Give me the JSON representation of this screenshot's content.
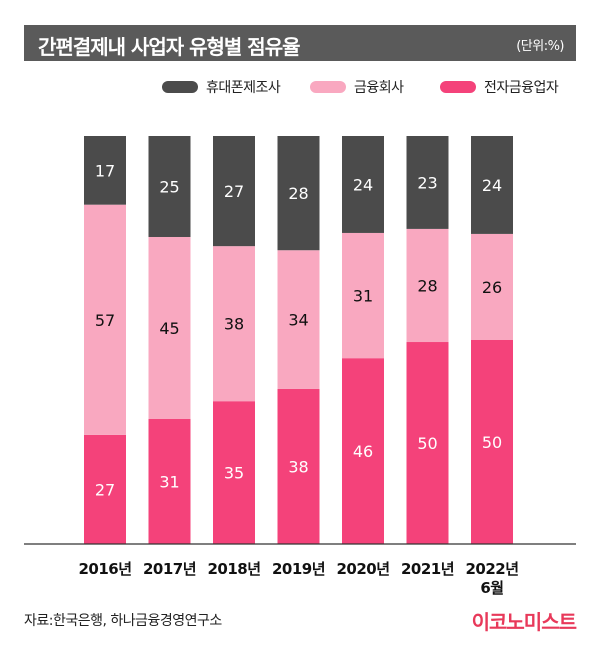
{
  "header": {
    "title": "간편결제내 사업자 유형별 점유율",
    "unit": "(단위:%)"
  },
  "colors": {
    "title_bg": "#5a5a5a",
    "device": "#4b4b4b",
    "finance": "#f9a8c0",
    "fintech": "#f4427a",
    "logo": "#e8395a"
  },
  "chart_data": {
    "type": "bar",
    "stacked": true,
    "categories": [
      "2016년",
      "2017년",
      "2018년",
      "2019년",
      "2020년",
      "2021년",
      "2022년\n6월"
    ],
    "series": [
      {
        "name": "전자금융업자",
        "values": [
          27,
          31,
          35,
          38,
          46,
          50,
          50
        ]
      },
      {
        "name": "금융회사",
        "values": [
          57,
          45,
          38,
          34,
          31,
          28,
          26
        ]
      },
      {
        "name": "휴대폰제조사",
        "values": [
          17,
          25,
          27,
          28,
          24,
          23,
          24
        ]
      }
    ],
    "title": "간편결제내 사업자 유형별 점유율",
    "ylim": [
      0,
      100
    ],
    "legend": "top-right",
    "grid": false
  },
  "legend": [
    {
      "label": "휴대폰제조사"
    },
    {
      "label": "금융회사"
    },
    {
      "label": "전자금융업자"
    }
  ],
  "footer": {
    "source": "자료:한국은행, 하나금융경영연구소",
    "logo": "이코노미스트"
  }
}
